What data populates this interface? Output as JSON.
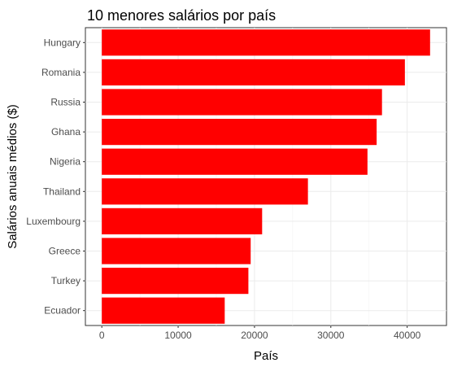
{
  "chart_data": {
    "type": "bar",
    "orientation": "horizontal",
    "title": "10 menores salários por país",
    "xlabel": "País",
    "ylabel": "Salários anuais médios ($)",
    "categories": [
      "Hungary",
      "Romania",
      "Russia",
      "Ghana",
      "Nigeria",
      "Thailand",
      "Luxembourg",
      "Greece",
      "Turkey",
      "Ecuador"
    ],
    "values": [
      43000,
      39700,
      36700,
      36000,
      34800,
      27000,
      21000,
      19500,
      19200,
      16100
    ],
    "xlim": [
      -2150,
      45150
    ],
    "xticks": [
      0,
      10000,
      20000,
      30000,
      40000
    ],
    "xtick_labels": [
      "0",
      "10000",
      "20000",
      "30000",
      "40000"
    ],
    "bar_color": "#ff0000",
    "grid": true,
    "legend": "none"
  }
}
